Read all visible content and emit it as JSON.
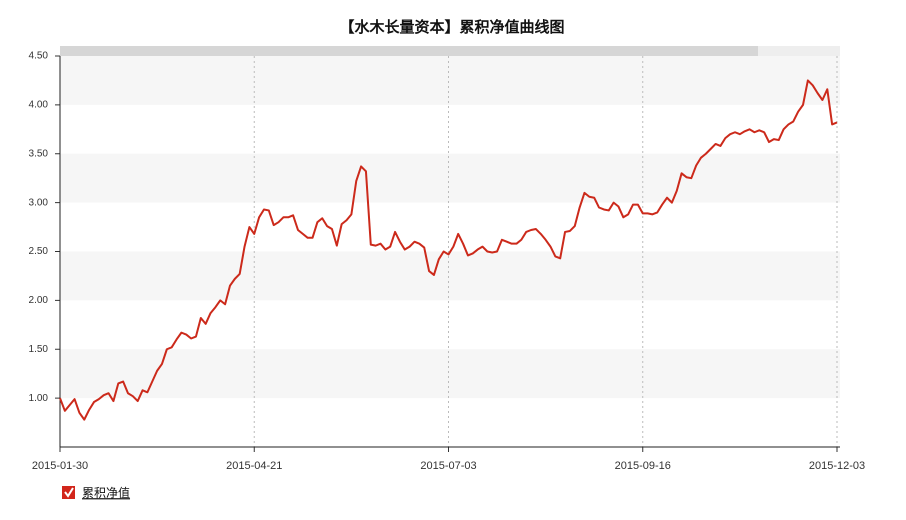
{
  "chart_data": {
    "type": "line",
    "title": "【水木长量资本】累积净值曲线图",
    "categories": [
      "2015-01-30",
      null,
      null,
      null,
      null,
      null,
      null,
      null,
      null,
      null,
      null,
      null,
      null,
      null,
      null,
      null,
      null,
      null,
      null,
      null,
      null,
      null,
      null,
      null,
      null,
      null,
      null,
      null,
      null,
      null,
      null,
      null,
      null,
      null,
      null,
      null,
      null,
      null,
      null,
      null,
      "2015-04-21",
      null,
      null,
      null,
      null,
      null,
      null,
      null,
      null,
      null,
      null,
      null,
      null,
      null,
      null,
      null,
      null,
      null,
      null,
      null,
      null,
      null,
      null,
      null,
      null,
      null,
      null,
      null,
      null,
      null,
      null,
      null,
      null,
      null,
      null,
      null,
      null,
      null,
      null,
      null,
      "2015-07-03",
      null,
      null,
      null,
      null,
      null,
      null,
      null,
      null,
      null,
      null,
      null,
      null,
      null,
      null,
      null,
      null,
      null,
      null,
      null,
      null,
      null,
      null,
      null,
      null,
      null,
      null,
      null,
      null,
      null,
      null,
      null,
      null,
      null,
      null,
      null,
      null,
      null,
      null,
      null,
      "2015-09-16",
      null,
      null,
      null,
      null,
      null,
      null,
      null,
      null,
      null,
      null,
      null,
      null,
      null,
      null,
      null,
      null,
      null,
      null,
      null,
      null,
      null,
      null,
      null,
      null,
      null,
      null,
      null,
      null,
      null,
      null,
      null,
      null,
      null,
      null,
      null,
      null,
      null,
      null,
      null,
      "2015-12-03"
    ],
    "series": [
      {
        "name": "累积净值",
        "color": "#cc2a1b",
        "values": [
          1.0,
          0.87,
          0.93,
          0.99,
          0.85,
          0.78,
          0.88,
          0.96,
          0.99,
          1.03,
          1.05,
          0.97,
          1.15,
          1.17,
          1.05,
          1.02,
          0.97,
          1.08,
          1.06,
          1.17,
          1.28,
          1.35,
          1.5,
          1.52,
          1.6,
          1.67,
          1.65,
          1.61,
          1.63,
          1.82,
          1.76,
          1.87,
          1.93,
          2.0,
          1.96,
          2.15,
          2.22,
          2.27,
          2.55,
          2.75,
          2.68,
          2.85,
          2.93,
          2.92,
          2.77,
          2.8,
          2.85,
          2.85,
          2.87,
          2.72,
          2.68,
          2.64,
          2.64,
          2.8,
          2.84,
          2.76,
          2.73,
          2.56,
          2.78,
          2.82,
          2.88,
          3.22,
          3.37,
          3.32,
          2.57,
          2.56,
          2.58,
          2.52,
          2.55,
          2.7,
          2.6,
          2.52,
          2.55,
          2.6,
          2.58,
          2.54,
          2.3,
          2.26,
          2.42,
          2.5,
          2.47,
          2.55,
          2.68,
          2.58,
          2.46,
          2.48,
          2.52,
          2.55,
          2.5,
          2.49,
          2.5,
          2.62,
          2.6,
          2.58,
          2.58,
          2.62,
          2.7,
          2.72,
          2.73,
          2.68,
          2.62,
          2.55,
          2.45,
          2.43,
          2.7,
          2.71,
          2.76,
          2.95,
          3.1,
          3.06,
          3.05,
          2.95,
          2.93,
          2.92,
          3.0,
          2.96,
          2.85,
          2.88,
          2.98,
          2.98,
          2.89,
          2.89,
          2.88,
          2.9,
          2.98,
          3.05,
          3.0,
          3.12,
          3.3,
          3.26,
          3.25,
          3.38,
          3.46,
          3.5,
          3.55,
          3.6,
          3.58,
          3.66,
          3.7,
          3.72,
          3.7,
          3.73,
          3.75,
          3.72,
          3.74,
          3.72,
          3.62,
          3.65,
          3.64,
          3.75,
          3.8,
          3.83,
          3.93,
          4.0,
          4.25,
          4.2,
          4.12,
          4.05,
          4.16,
          3.8,
          3.82
        ]
      }
    ],
    "ylim": [
      0.5,
      4.5
    ],
    "yticks": [
      {
        "value": 1.0,
        "label": "1.00"
      },
      {
        "value": 1.5,
        "label": "1.50"
      },
      {
        "value": 2.0,
        "label": "2.00"
      },
      {
        "value": 2.5,
        "label": "2.50"
      },
      {
        "value": 3.0,
        "label": "3.00"
      },
      {
        "value": 3.5,
        "label": "3.50"
      },
      {
        "value": 4.0,
        "label": "4.00"
      },
      {
        "value": 4.5,
        "label": "4.50"
      }
    ],
    "grid": true
  }
}
